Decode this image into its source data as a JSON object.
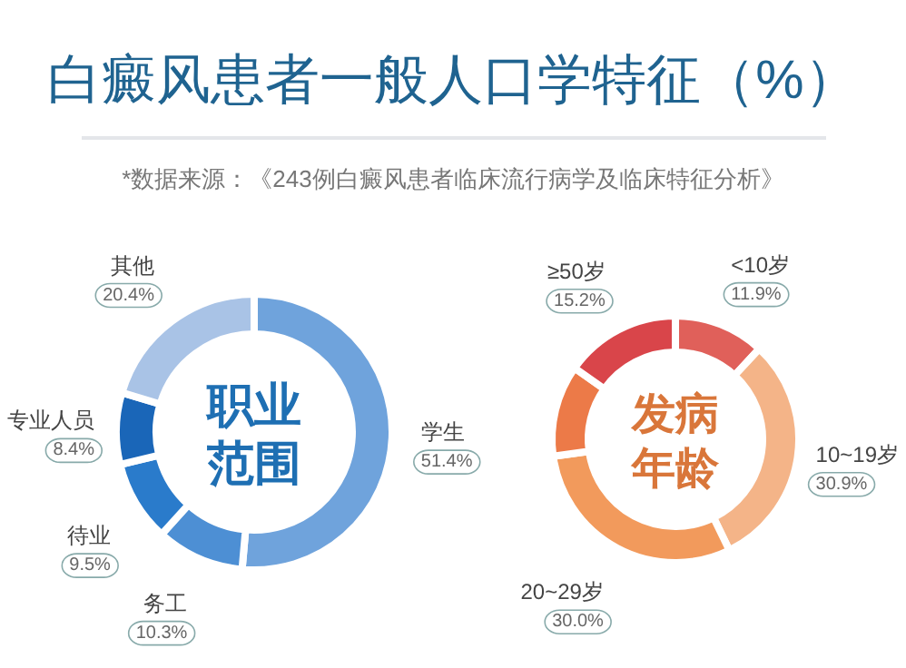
{
  "chart_data": [
    {
      "type": "other",
      "title": "白癜风患者一般人口学特征（%）",
      "annotations": [
        "*数据来源：《243例白癜风患者临床流行病学及临床特征分析》"
      ]
    },
    {
      "type": "donut",
      "title": "职业范围",
      "categories": [
        "学生",
        "务工",
        "待业",
        "专业人员",
        "其他"
      ],
      "values": [
        51.4,
        10.3,
        9.5,
        8.4,
        20.4
      ],
      "colors": [
        "#6fa3dc",
        "#4d8fd4",
        "#2a7bcb",
        "#1a66b8",
        "#a9c3e6"
      ],
      "value_labels": [
        "51.4%",
        "10.3%",
        "9.5%",
        "8.4%",
        "20.4%"
      ]
    },
    {
      "type": "donut",
      "title": "发病年龄",
      "categories": [
        "<10岁",
        "10~19岁",
        "20~29岁",
        null,
        "≥50岁"
      ],
      "values": [
        11.9,
        30.9,
        30.0,
        12.0,
        15.2
      ],
      "colors": [
        "#e0605a",
        "#f4b488",
        "#f29a5c",
        "#ec7a48",
        "#d9454a"
      ],
      "value_labels": [
        "11.9%",
        "30.9%",
        "30.0%",
        null,
        "15.2%"
      ]
    }
  ]
}
